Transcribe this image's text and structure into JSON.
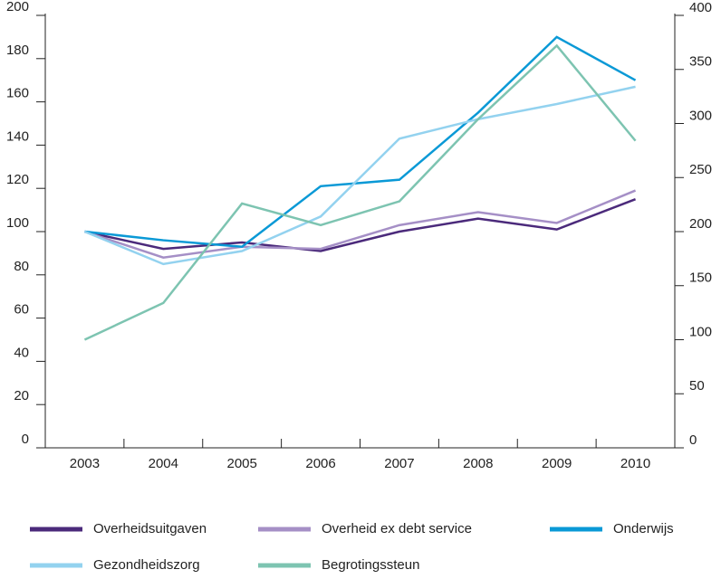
{
  "chart_data": {
    "type": "line",
    "categories": [
      "2003",
      "2004",
      "2005",
      "2006",
      "2007",
      "2008",
      "2009",
      "2010"
    ],
    "ylim": [
      0,
      200
    ],
    "yticks": [
      0,
      20,
      40,
      60,
      80,
      100,
      120,
      140,
      160,
      180,
      200
    ],
    "y2lim": [
      0,
      400
    ],
    "y2ticks": [
      0,
      50,
      100,
      150,
      200,
      250,
      300,
      350,
      400
    ],
    "series": [
      {
        "name": "Overheidsuitgaven",
        "color": "#4b2a7b",
        "values": [
          100,
          92,
          95,
          91,
          100,
          106,
          101,
          115
        ]
      },
      {
        "name": "Overheid ex debt service",
        "color": "#a58fc6",
        "values": [
          100,
          88,
          93,
          92,
          103,
          109,
          104,
          119
        ]
      },
      {
        "name": "Onderwijs",
        "color": "#0a99d6",
        "values": [
          100,
          96,
          93,
          121,
          124,
          155,
          190,
          170
        ]
      },
      {
        "name": "Gezondheidszorg",
        "color": "#93d2ef",
        "values": [
          100,
          85,
          91,
          107,
          143,
          152,
          159,
          167
        ]
      },
      {
        "name": "Begrotingssteun",
        "color": "#7dc4b1",
        "axis": "y2",
        "values": [
          100,
          134,
          226,
          206,
          228,
          304,
          372,
          284
        ]
      }
    ],
    "legend": "bottom"
  }
}
